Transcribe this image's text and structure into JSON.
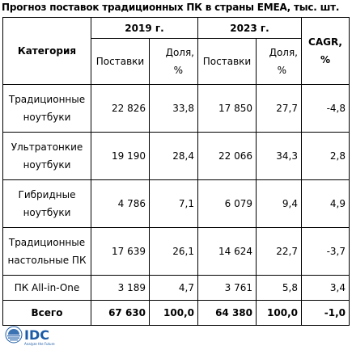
{
  "title": "Прогноз поставок традиционных ПК в страны ЕМЕА, тыс. шт.",
  "header": {
    "category": "Категория",
    "year1": "2019 г.",
    "year2": "2023 г.",
    "cagr_line1": "CAGR,",
    "cagr_line2": "%",
    "shipments": "Поставки",
    "share_line1": "Доля,",
    "share_line2": "%"
  },
  "rows": [
    {
      "cat1": "Традиционные",
      "cat2": "ноутбуки",
      "s2019": "22 826",
      "d2019": "33,8",
      "s2023": "17 850",
      "d2023": "27,7",
      "cagr": "-4,8"
    },
    {
      "cat1": "Ультратонкие",
      "cat2": "ноутбуки",
      "s2019": "19 190",
      "d2019": "28,4",
      "s2023": "22 066",
      "d2023": "34,3",
      "cagr": "2,8"
    },
    {
      "cat1": "Гибридные",
      "cat2": "ноутбуки",
      "s2019": "4 786",
      "d2019": "7,1",
      "s2023": "6 079",
      "d2023": "9,4",
      "cagr": "4,9"
    },
    {
      "cat1": "Традиционные",
      "cat2": "настольные ПК",
      "s2019": "17 639",
      "d2019": "26,1",
      "s2023": "14 624",
      "d2023": "22,7",
      "cagr": "-3,7"
    },
    {
      "cat1": "ПК All-in-One",
      "cat2": "",
      "s2019": "3 189",
      "d2019": "4,7",
      "s2023": "3 761",
      "d2023": "5,8",
      "cagr": "3,4"
    }
  ],
  "total": {
    "label": "Всего",
    "s2019": "67 630",
    "d2019": "100,0",
    "s2023": "64 380",
    "d2023": "100,0",
    "cagr": "-1,0"
  },
  "logo": {
    "text": "IDC",
    "tagline": "Analyze the Future",
    "color": "#1a5aa6"
  }
}
